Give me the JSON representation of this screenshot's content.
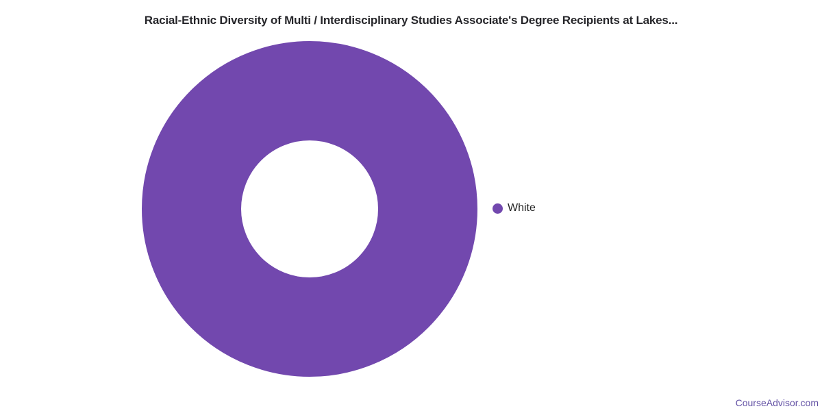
{
  "page": {
    "footer_link": "CourseAdvisor.com"
  },
  "colors": {
    "bg": "#ffffff",
    "purple": "#7248AE",
    "title": "#26262A",
    "legend": "#222222",
    "footer": "#6250A4"
  },
  "chart_data": {
    "type": "pie",
    "subtype": "donut",
    "title": "Racial-Ethnic Diversity of Multi / Interdisciplinary Studies Associate's Degree Recipients at Lakes...",
    "categories": [
      "White"
    ],
    "values": [
      100
    ],
    "unit": "percent",
    "colors": [
      "#7248AE"
    ],
    "legend_position": "right",
    "inner_radius_ratio": 0.41,
    "data_labels": false,
    "grid": false
  }
}
